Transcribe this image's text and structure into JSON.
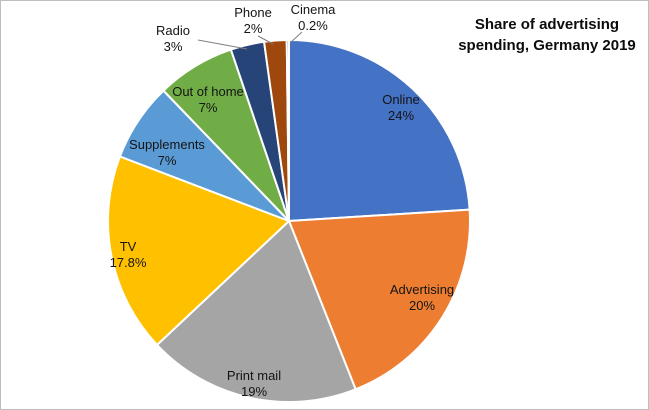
{
  "chart_data": {
    "type": "pie",
    "title": "Share of advertising spending, Germany 2019",
    "unit": "%",
    "direction": "clockwise",
    "start_angle_deg": 0,
    "legend": "none",
    "labels_on_slices": true,
    "slice_separator_color": "#ffffff",
    "slices": [
      {
        "label": "Online",
        "value": 24,
        "value_label": "24%",
        "color": "#4472C4"
      },
      {
        "label": "Advertising",
        "value": 20,
        "value_label": "20%",
        "color": "#ED7D31"
      },
      {
        "label": "Print mail",
        "value": 19,
        "value_label": "19%",
        "color": "#A5A5A5"
      },
      {
        "label": "TV",
        "value": 17.8,
        "value_label": "17.8%",
        "color": "#FFC000"
      },
      {
        "label": "Supplements",
        "value": 7,
        "value_label": "7%",
        "color": "#5B9BD5"
      },
      {
        "label": "Out of home",
        "value": 7,
        "value_label": "7%",
        "color": "#70AD47"
      },
      {
        "label": "Radio",
        "value": 3,
        "value_label": "3%",
        "color": "#264478"
      },
      {
        "label": "Phone",
        "value": 2,
        "value_label": "2%",
        "color": "#9E480E"
      },
      {
        "label": "Cinema",
        "value": 0.2,
        "value_label": "0.2%",
        "color": "#636363"
      }
    ]
  }
}
